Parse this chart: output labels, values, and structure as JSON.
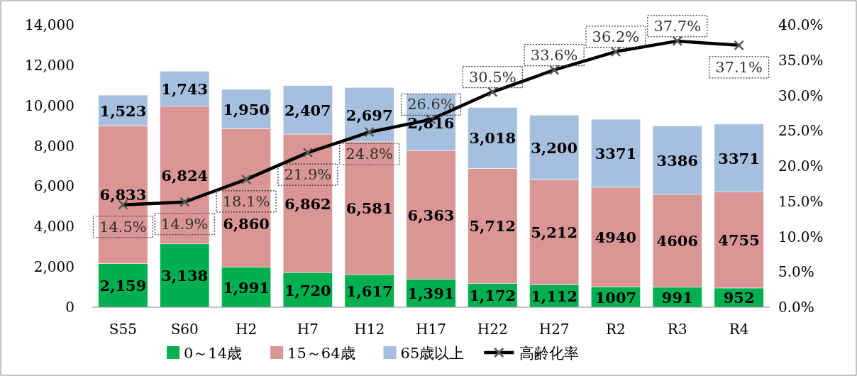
{
  "chart_data": {
    "type": "bar",
    "stacked": true,
    "categories": [
      "S55",
      "S60",
      "H2",
      "H7",
      "H12",
      "H17",
      "H22",
      "H27",
      "R2",
      "R3",
      "R4"
    ],
    "series": [
      {
        "name": "0～14歳",
        "color": "#00b050",
        "values": [
          2159,
          3138,
          1991,
          1720,
          1617,
          1391,
          1172,
          1112,
          1007,
          991,
          952
        ],
        "value_labels": [
          "2,159",
          "3,138",
          "1,991",
          "1,720",
          "1,617",
          "1,391",
          "1,172",
          "1,112",
          "1007",
          "991",
          "952"
        ]
      },
      {
        "name": "15～64歳",
        "color": "#d99694",
        "values": [
          6833,
          6824,
          6860,
          6862,
          6581,
          6363,
          5712,
          5212,
          4940,
          4606,
          4755
        ],
        "value_labels": [
          "6,833",
          "6,824",
          "6,860",
          "6,862",
          "6,581",
          "6,363",
          "5,712",
          "5,212",
          "4940",
          "4606",
          "4755"
        ]
      },
      {
        "name": "65歳以上",
        "color": "#a6bfdf",
        "values": [
          1523,
          1743,
          1950,
          2407,
          2697,
          2816,
          3018,
          3200,
          3371,
          3386,
          3371
        ],
        "value_labels": [
          "1,523",
          "1,743",
          "1,950",
          "2,407",
          "2,697",
          "2,816",
          "3,018",
          "3,200",
          "3371",
          "3386",
          "3371"
        ]
      },
      {
        "name": "高齢化率",
        "type": "line",
        "axis": "y2",
        "color": "#000000",
        "marker": "cross",
        "values": [
          14.5,
          14.9,
          18.1,
          21.9,
          24.8,
          26.6,
          30.5,
          33.6,
          36.2,
          37.7,
          37.1
        ],
        "value_labels": [
          "14.5%",
          "14.9%",
          "18.1%",
          "21.9%",
          "24.8%",
          "26.6%",
          "30.5%",
          "33.6%",
          "36.2%",
          "37.7%",
          "37.1%"
        ]
      }
    ],
    "ylim": [
      0,
      14000
    ],
    "yticks": [
      0,
      {
        "value": 2000,
        "label": "2,000"
      },
      {
        "value": 4000,
        "label": "4,000"
      },
      {
        "value": 6000,
        "label": "6,000"
      },
      {
        "value": 8000,
        "label": "8,000"
      },
      {
        "value": 10000,
        "label": "10,000"
      },
      {
        "value": 12000,
        "label": "12,000"
      },
      {
        "value": 14000,
        "label": "14,000"
      }
    ],
    "y2lim": [
      0,
      40
    ],
    "y2ticks": [
      {
        "value": 0,
        "label": "0.0%"
      },
      {
        "value": 5,
        "label": "5.0%"
      },
      {
        "value": 10,
        "label": "10.0%"
      },
      {
        "value": 15,
        "label": "15.0%"
      },
      {
        "value": 20,
        "label": "20.0%"
      },
      {
        "value": 25,
        "label": "25.0%"
      },
      {
        "value": 30,
        "label": "30.0%"
      },
      {
        "value": 35,
        "label": "35.0%"
      },
      {
        "value": 40,
        "label": "40.0%"
      }
    ],
    "grid": false,
    "legend": "bottom"
  }
}
